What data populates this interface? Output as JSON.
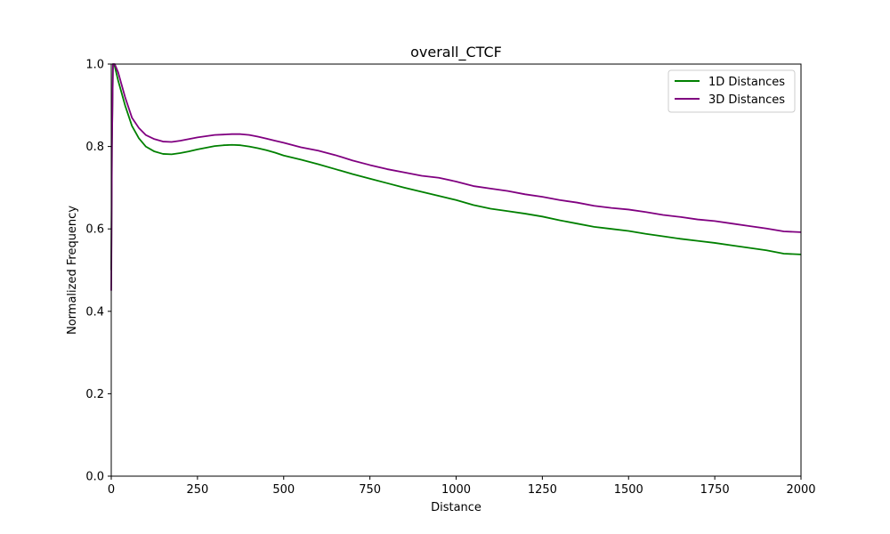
{
  "chart_data": {
    "type": "line",
    "title": "overall_CTCF",
    "xlabel": "Distance",
    "ylabel": "Normalized Frequency",
    "xlim": [
      0,
      2000
    ],
    "ylim": [
      0.0,
      1.0
    ],
    "xticks": [
      "0",
      "250",
      "500",
      "750",
      "1000",
      "1250",
      "1500",
      "1750",
      "2000"
    ],
    "yticks": [
      "0.0",
      "0.2",
      "0.4",
      "0.6",
      "0.8",
      "1.0"
    ],
    "grid": false,
    "legend_position": "top-right",
    "series": [
      {
        "name": "1D Distances",
        "color": "#008000",
        "points": [
          [
            0,
            0.5
          ],
          [
            2,
            0.8
          ],
          [
            5,
            1.0
          ],
          [
            10,
            0.995
          ],
          [
            20,
            0.96
          ],
          [
            40,
            0.9
          ],
          [
            60,
            0.85
          ],
          [
            80,
            0.82
          ],
          [
            100,
            0.8
          ],
          [
            125,
            0.788
          ],
          [
            150,
            0.782
          ],
          [
            175,
            0.781
          ],
          [
            200,
            0.784
          ],
          [
            225,
            0.788
          ],
          [
            250,
            0.793
          ],
          [
            275,
            0.797
          ],
          [
            300,
            0.801
          ],
          [
            325,
            0.803
          ],
          [
            350,
            0.804
          ],
          [
            375,
            0.803
          ],
          [
            400,
            0.8
          ],
          [
            425,
            0.796
          ],
          [
            450,
            0.791
          ],
          [
            475,
            0.785
          ],
          [
            500,
            0.778
          ],
          [
            550,
            0.768
          ],
          [
            600,
            0.757
          ],
          [
            650,
            0.745
          ],
          [
            700,
            0.733
          ],
          [
            750,
            0.722
          ],
          [
            800,
            0.711
          ],
          [
            850,
            0.7
          ],
          [
            900,
            0.69
          ],
          [
            950,
            0.68
          ],
          [
            1000,
            0.67
          ],
          [
            1050,
            0.658
          ],
          [
            1100,
            0.649
          ],
          [
            1150,
            0.643
          ],
          [
            1200,
            0.637
          ],
          [
            1250,
            0.63
          ],
          [
            1300,
            0.621
          ],
          [
            1350,
            0.613
          ],
          [
            1400,
            0.605
          ],
          [
            1450,
            0.6
          ],
          [
            1500,
            0.595
          ],
          [
            1550,
            0.588
          ],
          [
            1600,
            0.582
          ],
          [
            1650,
            0.576
          ],
          [
            1700,
            0.571
          ],
          [
            1750,
            0.566
          ],
          [
            1800,
            0.56
          ],
          [
            1850,
            0.554
          ],
          [
            1900,
            0.548
          ],
          [
            1950,
            0.54
          ],
          [
            2000,
            0.538
          ]
        ]
      },
      {
        "name": "3D Distances",
        "color": "#800080",
        "points": [
          [
            0,
            0.45
          ],
          [
            2,
            0.8
          ],
          [
            5,
            1.0
          ],
          [
            10,
            1.0
          ],
          [
            20,
            0.98
          ],
          [
            40,
            0.92
          ],
          [
            60,
            0.87
          ],
          [
            80,
            0.845
          ],
          [
            100,
            0.828
          ],
          [
            125,
            0.818
          ],
          [
            150,
            0.812
          ],
          [
            175,
            0.811
          ],
          [
            200,
            0.814
          ],
          [
            225,
            0.818
          ],
          [
            250,
            0.822
          ],
          [
            275,
            0.825
          ],
          [
            300,
            0.828
          ],
          [
            325,
            0.829
          ],
          [
            350,
            0.83
          ],
          [
            375,
            0.83
          ],
          [
            400,
            0.828
          ],
          [
            425,
            0.824
          ],
          [
            450,
            0.819
          ],
          [
            475,
            0.814
          ],
          [
            500,
            0.809
          ],
          [
            550,
            0.798
          ],
          [
            600,
            0.79
          ],
          [
            650,
            0.779
          ],
          [
            700,
            0.766
          ],
          [
            750,
            0.755
          ],
          [
            800,
            0.745
          ],
          [
            850,
            0.737
          ],
          [
            900,
            0.729
          ],
          [
            950,
            0.724
          ],
          [
            1000,
            0.715
          ],
          [
            1050,
            0.704
          ],
          [
            1100,
            0.698
          ],
          [
            1150,
            0.692
          ],
          [
            1200,
            0.684
          ],
          [
            1250,
            0.678
          ],
          [
            1300,
            0.67
          ],
          [
            1350,
            0.664
          ],
          [
            1400,
            0.656
          ],
          [
            1450,
            0.651
          ],
          [
            1500,
            0.647
          ],
          [
            1550,
            0.641
          ],
          [
            1600,
            0.634
          ],
          [
            1650,
            0.629
          ],
          [
            1700,
            0.623
          ],
          [
            1750,
            0.619
          ],
          [
            1800,
            0.613
          ],
          [
            1850,
            0.607
          ],
          [
            1900,
            0.601
          ],
          [
            1950,
            0.594
          ],
          [
            2000,
            0.592
          ]
        ]
      }
    ]
  }
}
